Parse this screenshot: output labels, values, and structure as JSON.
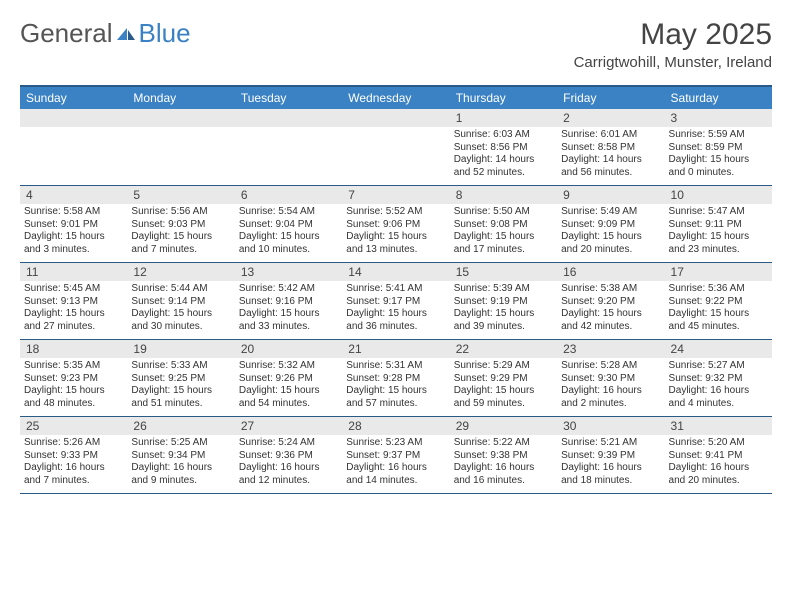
{
  "logo": {
    "text1": "General",
    "text2": "Blue"
  },
  "title": "May 2025",
  "location": "Carrigtwohill, Munster, Ireland",
  "colors": {
    "header_bg": "#3b82c4",
    "header_border": "#2a5a88",
    "daynum_bg": "#e9e9e9",
    "text": "#333333",
    "logo_gray": "#555555",
    "logo_blue": "#3b82c4"
  },
  "weekdays": [
    "Sunday",
    "Monday",
    "Tuesday",
    "Wednesday",
    "Thursday",
    "Friday",
    "Saturday"
  ],
  "labels": {
    "sunrise": "Sunrise:",
    "sunset": "Sunset:",
    "daylight": "Daylight:"
  },
  "weeks": [
    [
      null,
      null,
      null,
      null,
      {
        "n": "1",
        "sunrise": "6:03 AM",
        "sunset": "8:56 PM",
        "daylight": "14 hours and 52 minutes."
      },
      {
        "n": "2",
        "sunrise": "6:01 AM",
        "sunset": "8:58 PM",
        "daylight": "14 hours and 56 minutes."
      },
      {
        "n": "3",
        "sunrise": "5:59 AM",
        "sunset": "8:59 PM",
        "daylight": "15 hours and 0 minutes."
      }
    ],
    [
      {
        "n": "4",
        "sunrise": "5:58 AM",
        "sunset": "9:01 PM",
        "daylight": "15 hours and 3 minutes."
      },
      {
        "n": "5",
        "sunrise": "5:56 AM",
        "sunset": "9:03 PM",
        "daylight": "15 hours and 7 minutes."
      },
      {
        "n": "6",
        "sunrise": "5:54 AM",
        "sunset": "9:04 PM",
        "daylight": "15 hours and 10 minutes."
      },
      {
        "n": "7",
        "sunrise": "5:52 AM",
        "sunset": "9:06 PM",
        "daylight": "15 hours and 13 minutes."
      },
      {
        "n": "8",
        "sunrise": "5:50 AM",
        "sunset": "9:08 PM",
        "daylight": "15 hours and 17 minutes."
      },
      {
        "n": "9",
        "sunrise": "5:49 AM",
        "sunset": "9:09 PM",
        "daylight": "15 hours and 20 minutes."
      },
      {
        "n": "10",
        "sunrise": "5:47 AM",
        "sunset": "9:11 PM",
        "daylight": "15 hours and 23 minutes."
      }
    ],
    [
      {
        "n": "11",
        "sunrise": "5:45 AM",
        "sunset": "9:13 PM",
        "daylight": "15 hours and 27 minutes."
      },
      {
        "n": "12",
        "sunrise": "5:44 AM",
        "sunset": "9:14 PM",
        "daylight": "15 hours and 30 minutes."
      },
      {
        "n": "13",
        "sunrise": "5:42 AM",
        "sunset": "9:16 PM",
        "daylight": "15 hours and 33 minutes."
      },
      {
        "n": "14",
        "sunrise": "5:41 AM",
        "sunset": "9:17 PM",
        "daylight": "15 hours and 36 minutes."
      },
      {
        "n": "15",
        "sunrise": "5:39 AM",
        "sunset": "9:19 PM",
        "daylight": "15 hours and 39 minutes."
      },
      {
        "n": "16",
        "sunrise": "5:38 AM",
        "sunset": "9:20 PM",
        "daylight": "15 hours and 42 minutes."
      },
      {
        "n": "17",
        "sunrise": "5:36 AM",
        "sunset": "9:22 PM",
        "daylight": "15 hours and 45 minutes."
      }
    ],
    [
      {
        "n": "18",
        "sunrise": "5:35 AM",
        "sunset": "9:23 PM",
        "daylight": "15 hours and 48 minutes."
      },
      {
        "n": "19",
        "sunrise": "5:33 AM",
        "sunset": "9:25 PM",
        "daylight": "15 hours and 51 minutes."
      },
      {
        "n": "20",
        "sunrise": "5:32 AM",
        "sunset": "9:26 PM",
        "daylight": "15 hours and 54 minutes."
      },
      {
        "n": "21",
        "sunrise": "5:31 AM",
        "sunset": "9:28 PM",
        "daylight": "15 hours and 57 minutes."
      },
      {
        "n": "22",
        "sunrise": "5:29 AM",
        "sunset": "9:29 PM",
        "daylight": "15 hours and 59 minutes."
      },
      {
        "n": "23",
        "sunrise": "5:28 AM",
        "sunset": "9:30 PM",
        "daylight": "16 hours and 2 minutes."
      },
      {
        "n": "24",
        "sunrise": "5:27 AM",
        "sunset": "9:32 PM",
        "daylight": "16 hours and 4 minutes."
      }
    ],
    [
      {
        "n": "25",
        "sunrise": "5:26 AM",
        "sunset": "9:33 PM",
        "daylight": "16 hours and 7 minutes."
      },
      {
        "n": "26",
        "sunrise": "5:25 AM",
        "sunset": "9:34 PM",
        "daylight": "16 hours and 9 minutes."
      },
      {
        "n": "27",
        "sunrise": "5:24 AM",
        "sunset": "9:36 PM",
        "daylight": "16 hours and 12 minutes."
      },
      {
        "n": "28",
        "sunrise": "5:23 AM",
        "sunset": "9:37 PM",
        "daylight": "16 hours and 14 minutes."
      },
      {
        "n": "29",
        "sunrise": "5:22 AM",
        "sunset": "9:38 PM",
        "daylight": "16 hours and 16 minutes."
      },
      {
        "n": "30",
        "sunrise": "5:21 AM",
        "sunset": "9:39 PM",
        "daylight": "16 hours and 18 minutes."
      },
      {
        "n": "31",
        "sunrise": "5:20 AM",
        "sunset": "9:41 PM",
        "daylight": "16 hours and 20 minutes."
      }
    ]
  ]
}
